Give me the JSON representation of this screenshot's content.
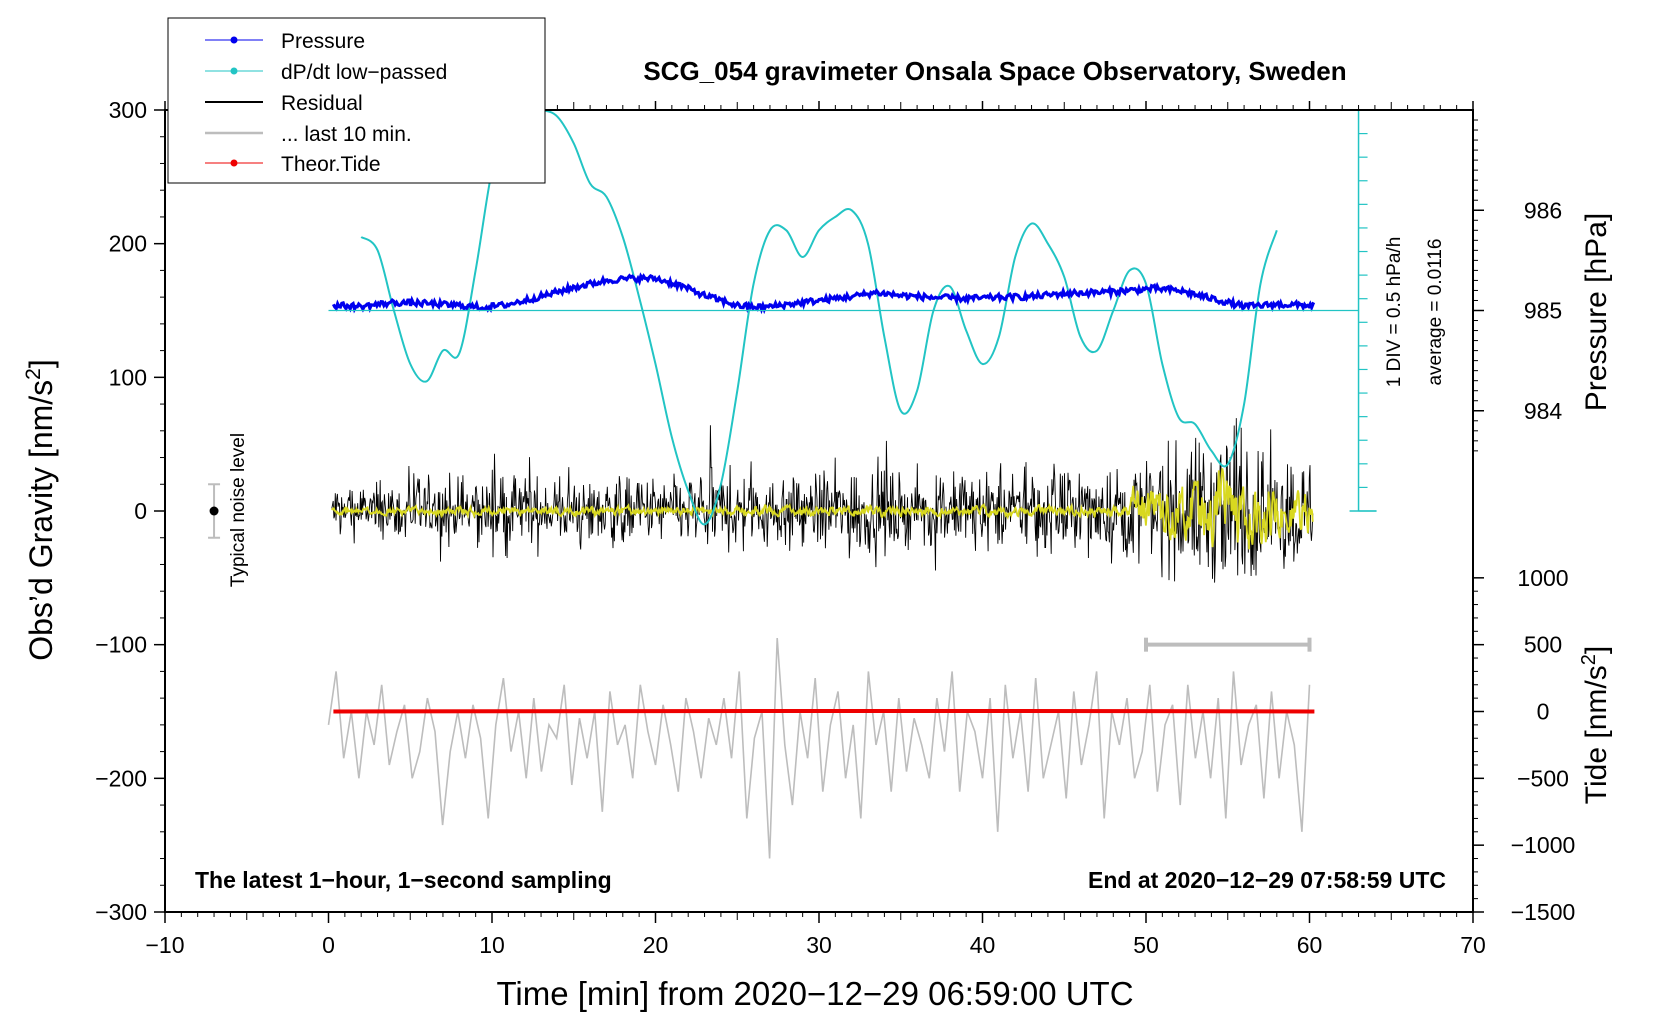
{
  "chart_data": {
    "type": "line",
    "title": "SCG_054 gravimeter Onsala Space Observatory, Sweden",
    "xlabel": "Time [min] from 2020−12−29 06:59:00 UTC",
    "ylabel": "Obs’d Gravity [nm/s²]",
    "ylabel_main": "Obs’d Gravity [nm/s",
    "ylabel_sup": "2",
    "ylabel_end": "]",
    "right_label_pressure": "Pressure [hPa]",
    "right_label_tide": "Tide [nm/s²]",
    "tide_label_main": "Tide [nm/s",
    "tide_label_sup": "2",
    "tide_label_end": "]",
    "xlim": [
      -10,
      70
    ],
    "ylim": [
      -300,
      300
    ],
    "x_ticks": [
      -10,
      0,
      10,
      20,
      30,
      40,
      50,
      60,
      70
    ],
    "x_tick_labels": [
      "−10",
      "0",
      "10",
      "20",
      "30",
      "40",
      "50",
      "60",
      "70"
    ],
    "y_ticks": [
      300,
      200,
      100,
      0,
      -100,
      -200,
      -300
    ],
    "y_tick_labels": [
      "300",
      "200",
      "100",
      "0",
      "−100",
      "−200",
      "−300"
    ],
    "pressure_axis": {
      "ticks": [
        986,
        985,
        984
      ],
      "tick_labels": [
        "986",
        "985",
        "984"
      ],
      "gravity_at_985": 150,
      "gravity_per_hPa": 75
    },
    "tide_axis": {
      "ticks": [
        1000,
        500,
        0,
        -500,
        -1000,
        -1500
      ],
      "tick_labels": [
        "1000",
        "500",
        "0",
        "−500",
        "−1000",
        "−1500"
      ],
      "gravity_at_zero": -150,
      "gravity_per_unit": 0.1
    },
    "dpdt_scale": {
      "label_div": "1 DIV = 0.5 hPa/h",
      "label_avg": "average = 0.0116",
      "x": 63,
      "y_top": 300,
      "y_bottom": 0,
      "divisions": 17
    },
    "legend": [
      "Pressure",
      "dP/dt low−passed",
      "Residual",
      "... last 10 min.",
      "Theor.Tide"
    ],
    "annotation_left": "The latest 1−hour, 1−second sampling",
    "annotation_right": "End at 2020−12−29 07:58:59 UTC",
    "noise_label": "Typical noise level",
    "noise_bar": {
      "x": -7,
      "center": 0,
      "half_range": 20
    },
    "last10_bar": {
      "x_start": 50,
      "x_end": 60,
      "y": -100
    },
    "colors": {
      "pressure": "#0000ee",
      "dpdt": "#22c4c4",
      "residual": "#000000",
      "filtered": "#d8d820",
      "last10": "#bdbdbd",
      "tide": "#ee0000"
    },
    "series": [
      {
        "name": "Pressure",
        "unit": "hPa",
        "x": [
          0.3,
          2,
          4,
          6,
          8,
          9.5,
          11,
          13,
          15,
          17,
          18.5,
          20,
          21.5,
          23,
          25,
          26.5,
          28,
          30,
          32,
          33.5,
          35,
          37,
          39,
          41,
          43,
          45,
          47,
          49,
          50.5,
          52,
          54,
          56,
          58,
          60.3
        ],
        "values": [
          985.05,
          985.04,
          985.08,
          985.07,
          985.05,
          985.03,
          985.06,
          985.14,
          985.23,
          985.3,
          985.32,
          985.32,
          985.25,
          985.15,
          985.05,
          985.03,
          985.06,
          985.1,
          985.14,
          985.18,
          985.15,
          985.13,
          985.12,
          985.13,
          985.14,
          985.17,
          985.18,
          985.2,
          985.22,
          985.2,
          985.12,
          985.04,
          985.06,
          985.05
        ]
      },
      {
        "name": "dP/dt low−passed",
        "unit": "gravity-equivalent",
        "x": [
          2,
          3,
          4,
          5,
          6,
          7,
          8,
          9,
          10,
          11,
          12,
          13,
          14,
          15,
          16,
          17,
          18,
          19,
          20,
          21,
          22,
          23,
          24,
          25,
          26,
          27,
          28,
          29,
          30,
          31,
          32,
          33,
          34,
          35,
          36,
          37,
          38,
          39,
          40,
          41,
          42,
          43,
          44,
          45,
          46,
          47,
          48,
          49,
          50,
          51,
          52,
          53,
          54,
          55,
          56,
          57,
          58
        ],
        "values": [
          205,
          195,
          150,
          110,
          97,
          120,
          118,
          180,
          255,
          295,
          300,
          300,
          295,
          275,
          245,
          235,
          205,
          160,
          110,
          55,
          15,
          -10,
          20,
          90,
          170,
          210,
          210,
          190,
          210,
          220,
          225,
          200,
          130,
          75,
          90,
          150,
          168,
          135,
          110,
          130,
          190,
          215,
          200,
          175,
          130,
          120,
          150,
          180,
          170,
          110,
          70,
          65,
          45,
          35,
          80,
          170,
          210
        ]
      },
      {
        "name": "Residual",
        "unit": "nm/s²",
        "x_start": 0.2,
        "x_end": 60.2,
        "noise_profile": [
          [
            0,
            30
          ],
          [
            10,
            40
          ],
          [
            20,
            38
          ],
          [
            30,
            45
          ],
          [
            33,
            55
          ],
          [
            35,
            40
          ],
          [
            45,
            45
          ],
          [
            50,
            55
          ],
          [
            53,
            80
          ],
          [
            55,
            95
          ],
          [
            57,
            70
          ],
          [
            60,
            60
          ]
        ],
        "values": []
      },
      {
        "name": "... last 10 min.",
        "unit": "nm/s²",
        "x_start": 0,
        "x_end": 60,
        "offset": -150,
        "values": [
          -160,
          -120,
          -185,
          -150,
          -200,
          -150,
          -175,
          -130,
          -190,
          -165,
          -145,
          -200,
          -180,
          -140,
          -165,
          -235,
          -180,
          -150,
          -185,
          -145,
          -170,
          -230,
          -160,
          -125,
          -180,
          -150,
          -200,
          -140,
          -195,
          -160,
          -170,
          -130,
          -205,
          -155,
          -185,
          -150,
          -225,
          -135,
          -175,
          -160,
          -200,
          -130,
          -165,
          -190,
          -145,
          -175,
          -210,
          -140,
          -165,
          -200,
          -155,
          -175,
          -140,
          -185,
          -120,
          -230,
          -170,
          -150,
          -260,
          -95,
          -175,
          -220,
          -150,
          -185,
          -125,
          -210,
          -160,
          -135,
          -200,
          -160,
          -230,
          -120,
          -175,
          -150,
          -210,
          -140,
          -195,
          -155,
          -175,
          -200,
          -140,
          -180,
          -120,
          -210,
          -150,
          -165,
          -200,
          -140,
          -240,
          -130,
          -185,
          -150,
          -210,
          -125,
          -200,
          -175,
          -150,
          -215,
          -135,
          -190,
          -160,
          -120,
          -230,
          -150,
          -175,
          -140,
          -200,
          -180,
          -130,
          -210,
          -160,
          -145,
          -220,
          -130,
          -185,
          -150,
          -200,
          -140,
          -230,
          -120,
          -190,
          -160,
          -145,
          -215,
          -135,
          -200,
          -150,
          -175,
          -240,
          -130
        ]
      },
      {
        "name": "Theor.Tide",
        "unit": "nm/s²",
        "x": [
          0.3,
          10,
          20,
          30,
          40,
          50,
          60.3
        ],
        "values": [
          0,
          2,
          3,
          4,
          4,
          3,
          0
        ]
      }
    ]
  }
}
